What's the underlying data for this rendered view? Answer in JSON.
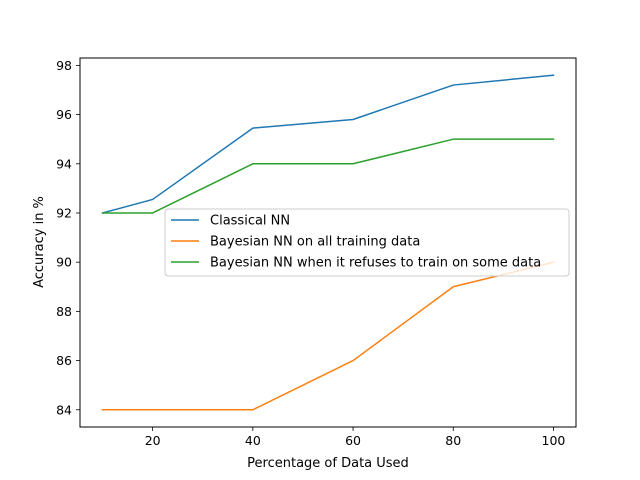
{
  "chart_data": {
    "type": "line",
    "title": "",
    "xlabel": "Percentage of Data Used",
    "ylabel": "Accuracy in %",
    "xlim": [
      5.5,
      104.5
    ],
    "ylim": [
      83.3,
      98.3
    ],
    "xticks": [
      20,
      40,
      60,
      80,
      100
    ],
    "yticks": [
      84,
      86,
      88,
      90,
      92,
      94,
      96,
      98
    ],
    "grid": false,
    "legend_position": "center-right",
    "series": [
      {
        "name": "Classical NN",
        "color": "#1f77b4",
        "x": [
          10,
          20,
          40,
          60,
          80,
          100
        ],
        "y": [
          92.0,
          92.55,
          95.45,
          95.8,
          97.2,
          97.6
        ]
      },
      {
        "name": "Bayesian NN on all training data",
        "color": "#ff7f0e",
        "x": [
          10,
          20,
          40,
          60,
          80,
          100
        ],
        "y": [
          84.0,
          84.0,
          84.0,
          86.0,
          89.0,
          90.0
        ]
      },
      {
        "name": "Bayesian NN when it refuses to train on some data",
        "color": "#2ca02c",
        "x": [
          10,
          20,
          40,
          60,
          80,
          100
        ],
        "y": [
          92.0,
          92.0,
          94.0,
          94.0,
          95.0,
          95.0
        ]
      }
    ]
  }
}
